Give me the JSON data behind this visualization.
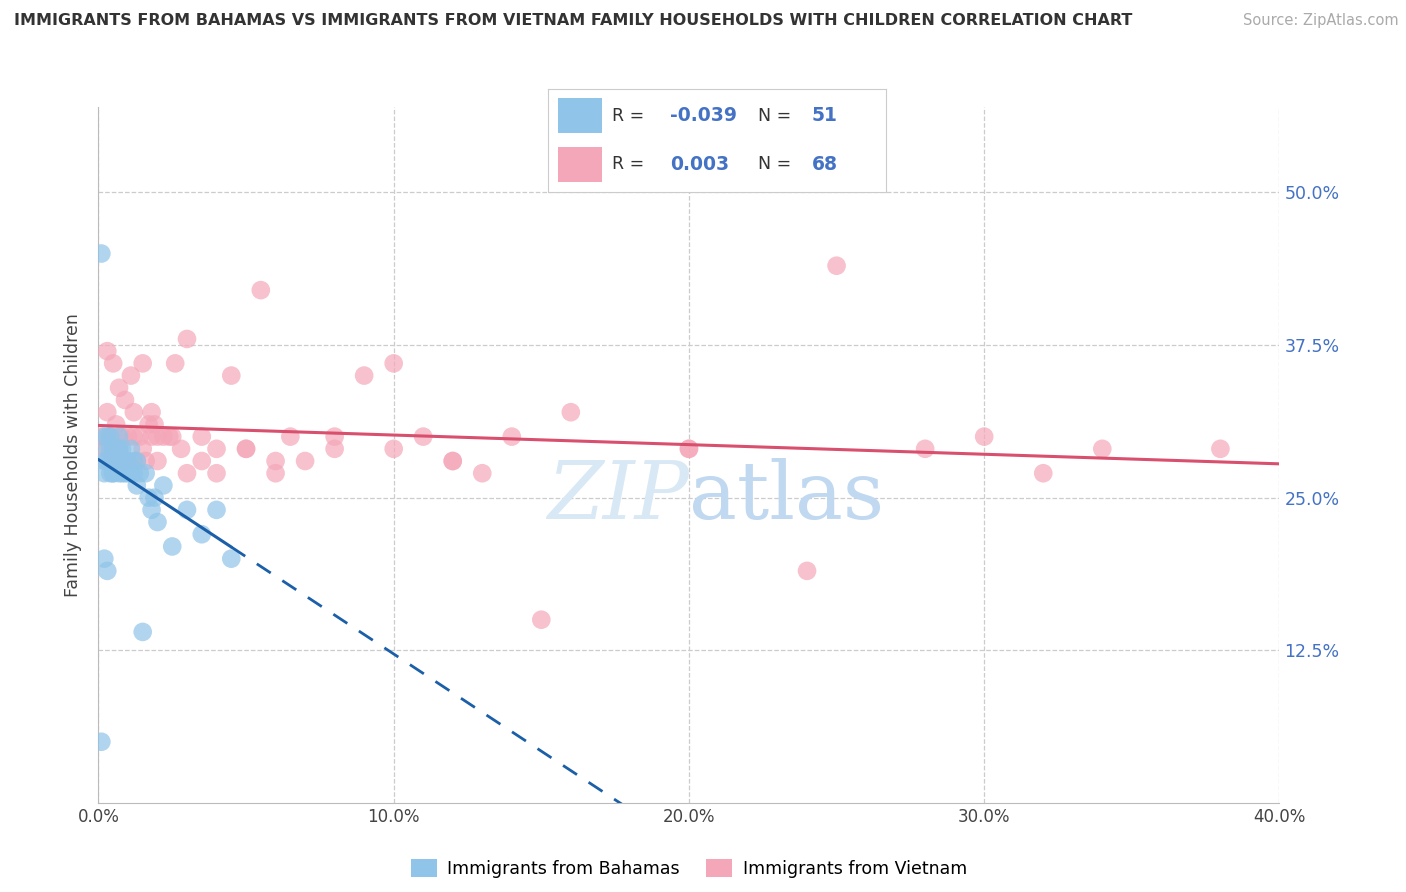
{
  "title": "IMMIGRANTS FROM BAHAMAS VS IMMIGRANTS FROM VIETNAM FAMILY HOUSEHOLDS WITH CHILDREN CORRELATION CHART",
  "source": "Source: ZipAtlas.com",
  "ylabel": "Family Households with Children",
  "ytick_values": [
    0.125,
    0.25,
    0.375,
    0.5
  ],
  "xlim": [
    0.0,
    0.4
  ],
  "ylim": [
    0.0,
    0.57
  ],
  "legend_label_1": "Immigrants from Bahamas",
  "legend_label_2": "Immigrants from Vietnam",
  "R1": -0.039,
  "N1": 51,
  "R2": 0.003,
  "N2": 68,
  "color_blue": "#90c4e8",
  "color_pink": "#f4a7b9",
  "trend_color_blue": "#1a5fa8",
  "trend_color_pink": "#d94f6e",
  "watermark_color": "#d8e8f5",
  "bahamas_x": [
    0.001,
    0.002,
    0.002,
    0.002,
    0.003,
    0.003,
    0.003,
    0.004,
    0.004,
    0.004,
    0.004,
    0.005,
    0.005,
    0.005,
    0.005,
    0.006,
    0.006,
    0.006,
    0.007,
    0.007,
    0.007,
    0.007,
    0.008,
    0.008,
    0.008,
    0.009,
    0.009,
    0.01,
    0.01,
    0.011,
    0.011,
    0.012,
    0.012,
    0.013,
    0.013,
    0.014,
    0.015,
    0.016,
    0.017,
    0.018,
    0.019,
    0.02,
    0.022,
    0.025,
    0.03,
    0.035,
    0.04,
    0.045,
    0.001,
    0.002,
    0.003
  ],
  "bahamas_y": [
    0.05,
    0.3,
    0.28,
    0.27,
    0.29,
    0.3,
    0.28,
    0.27,
    0.29,
    0.3,
    0.28,
    0.27,
    0.29,
    0.28,
    0.27,
    0.28,
    0.28,
    0.29,
    0.3,
    0.28,
    0.27,
    0.29,
    0.28,
    0.29,
    0.27,
    0.28,
    0.27,
    0.27,
    0.28,
    0.27,
    0.29,
    0.28,
    0.27,
    0.28,
    0.26,
    0.27,
    0.14,
    0.27,
    0.25,
    0.24,
    0.25,
    0.23,
    0.26,
    0.21,
    0.24,
    0.22,
    0.24,
    0.2,
    0.45,
    0.2,
    0.19
  ],
  "vietnam_x": [
    0.001,
    0.002,
    0.003,
    0.004,
    0.005,
    0.006,
    0.007,
    0.008,
    0.009,
    0.01,
    0.011,
    0.012,
    0.013,
    0.014,
    0.015,
    0.016,
    0.017,
    0.018,
    0.019,
    0.02,
    0.022,
    0.024,
    0.026,
    0.028,
    0.03,
    0.035,
    0.04,
    0.045,
    0.05,
    0.055,
    0.06,
    0.065,
    0.07,
    0.08,
    0.09,
    0.1,
    0.11,
    0.12,
    0.13,
    0.14,
    0.003,
    0.005,
    0.007,
    0.009,
    0.012,
    0.015,
    0.018,
    0.02,
    0.025,
    0.03,
    0.035,
    0.04,
    0.05,
    0.06,
    0.08,
    0.1,
    0.12,
    0.15,
    0.2,
    0.25,
    0.3,
    0.32,
    0.34,
    0.28,
    0.24,
    0.2,
    0.16,
    0.38
  ],
  "vietnam_y": [
    0.3,
    0.29,
    0.32,
    0.3,
    0.28,
    0.31,
    0.29,
    0.3,
    0.28,
    0.3,
    0.35,
    0.3,
    0.28,
    0.3,
    0.29,
    0.28,
    0.31,
    0.3,
    0.31,
    0.3,
    0.3,
    0.3,
    0.36,
    0.29,
    0.38,
    0.3,
    0.29,
    0.35,
    0.29,
    0.42,
    0.28,
    0.3,
    0.28,
    0.29,
    0.35,
    0.36,
    0.3,
    0.28,
    0.27,
    0.3,
    0.37,
    0.36,
    0.34,
    0.33,
    0.32,
    0.36,
    0.32,
    0.28,
    0.3,
    0.27,
    0.28,
    0.27,
    0.29,
    0.27,
    0.3,
    0.29,
    0.28,
    0.15,
    0.29,
    0.44,
    0.3,
    0.27,
    0.29,
    0.29,
    0.19,
    0.29,
    0.32,
    0.29
  ]
}
